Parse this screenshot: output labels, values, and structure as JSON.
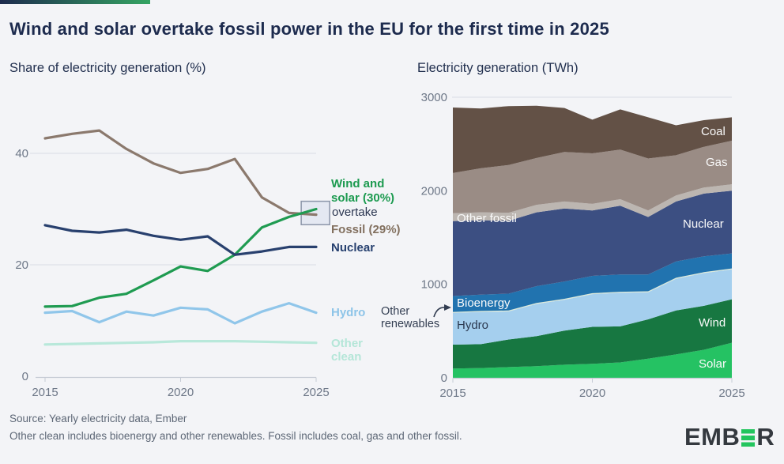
{
  "title": "Wind and solar overtake fossil power in the EU for the first time in 2025",
  "colors": {
    "background": "#f3f4f7",
    "accent_gradient_start": "#1d2b4e",
    "accent_gradient_end": "#35a563",
    "logo_green": "#23c55e",
    "logo_text": "#34393f",
    "gridline": "#d9dde5",
    "axis": "#c6cbd5",
    "tick_text": "#6e7888"
  },
  "charts": {
    "left": {
      "labels": {
        "wind_solar_line1": "Wind and",
        "wind_solar_line2": "solar (30%)",
        "overtake": "overtake",
        "fossil": "Fossil (29%)",
        "nuclear": "Nuclear",
        "hydro": "Hydro",
        "other_clean_line1": "Other",
        "other_clean_line2": "clean"
      }
    },
    "right": {
      "labels": {
        "coal": "Coal",
        "gas": "Gas",
        "other_fossil": "Other fossil",
        "nuclear": "Nuclear",
        "bioenergy": "Bioenergy",
        "hydro": "Hydro",
        "wind": "Wind",
        "solar": "Solar",
        "other_renewables_line1": "Other",
        "other_renewables_line2": "renewables"
      }
    }
  },
  "chart_data": [
    {
      "type": "line",
      "title": "Share of electricity generation (%)",
      "unit": "%",
      "x": [
        2015,
        2016,
        2017,
        2018,
        2019,
        2020,
        2021,
        2022,
        2023,
        2024,
        2025
      ],
      "xticks": [
        2015,
        2020,
        2025
      ],
      "yticks": [
        0,
        20,
        40
      ],
      "ylim": [
        0,
        47
      ],
      "grid": "horizontal",
      "highlight": {
        "x_range": [
          2024.45,
          2025.5
        ],
        "y_range": [
          27.2,
          31.4
        ]
      },
      "series": [
        {
          "name": "Fossil",
          "color": "#8b796d",
          "values": [
            42.7,
            43.5,
            44.1,
            40.8,
            38.2,
            36.5,
            37.2,
            39.0,
            32.1,
            29.3,
            29.0
          ]
        },
        {
          "name": "Wind and solar",
          "color": "#1f9b51",
          "values": [
            12.5,
            12.6,
            14.1,
            14.8,
            17.2,
            19.7,
            18.9,
            21.8,
            26.7,
            28.6,
            30.0
          ]
        },
        {
          "name": "Nuclear",
          "color": "#28406e",
          "values": [
            27.1,
            26.1,
            25.8,
            26.3,
            25.2,
            24.5,
            25.1,
            21.8,
            22.4,
            23.2,
            23.2
          ]
        },
        {
          "name": "Hydro",
          "color": "#90c6ea",
          "values": [
            11.4,
            11.7,
            9.7,
            11.6,
            10.9,
            12.3,
            12.0,
            9.5,
            11.6,
            13.1,
            11.4
          ]
        },
        {
          "name": "Other clean",
          "color": "#b8e8da",
          "values": [
            5.7,
            5.8,
            5.9,
            6.0,
            6.1,
            6.3,
            6.3,
            6.3,
            6.2,
            6.1,
            6.0
          ]
        }
      ]
    },
    {
      "type": "area",
      "title": "Electricity generation (TWh)",
      "unit": "TWh",
      "stack_order": "bottom-to-top",
      "x": [
        2015,
        2016,
        2017,
        2018,
        2019,
        2020,
        2021,
        2022,
        2023,
        2024,
        2025
      ],
      "xticks": [
        2015,
        2020,
        2025
      ],
      "yticks": [
        0,
        1000,
        2000,
        3000
      ],
      "ylim": [
        0,
        3000
      ],
      "series": [
        {
          "name": "Solar",
          "color": "#25c263",
          "values": [
            100,
            105,
            115,
            125,
            140,
            150,
            165,
            205,
            250,
            300,
            375
          ]
        },
        {
          "name": "Wind",
          "color": "#177741",
          "values": [
            255,
            255,
            295,
            320,
            365,
            395,
            385,
            420,
            470,
            470,
            465
          ]
        },
        {
          "name": "Hydro",
          "color": "#a5cfee",
          "values": [
            340,
            345,
            300,
            345,
            330,
            350,
            360,
            290,
            340,
            350,
            320
          ]
        },
        {
          "name": "Other renewables",
          "color": "#dcead9",
          "values": [
            10,
            10,
            10,
            10,
            10,
            10,
            10,
            10,
            10,
            10,
            10
          ]
        },
        {
          "name": "Bioenergy",
          "color": "#2173af",
          "values": [
            170,
            175,
            180,
            180,
            185,
            185,
            185,
            180,
            175,
            170,
            160
          ]
        },
        {
          "name": "Nuclear",
          "color": "#3c4f82",
          "values": [
            800,
            795,
            780,
            790,
            780,
            700,
            735,
            615,
            640,
            670,
            670
          ]
        },
        {
          "name": "Other fossil",
          "color": "#bcb6b1",
          "values": [
            85,
            85,
            85,
            80,
            75,
            70,
            70,
            70,
            65,
            65,
            70
          ]
        },
        {
          "name": "Gas",
          "color": "#9a8c85",
          "values": [
            430,
            470,
            510,
            500,
            530,
            540,
            530,
            555,
            430,
            435,
            465
          ]
        },
        {
          "name": "Coal",
          "color": "#635146",
          "values": [
            700,
            640,
            630,
            560,
            470,
            360,
            430,
            440,
            320,
            285,
            250
          ]
        }
      ]
    }
  ],
  "footer": {
    "source": "Source: Yearly electricity data, Ember",
    "note": "Other clean includes bioenergy and other renewables. Fossil includes coal, gas and other fossil.",
    "logo_prefix": "EMB",
    "logo_suffix": "R"
  }
}
